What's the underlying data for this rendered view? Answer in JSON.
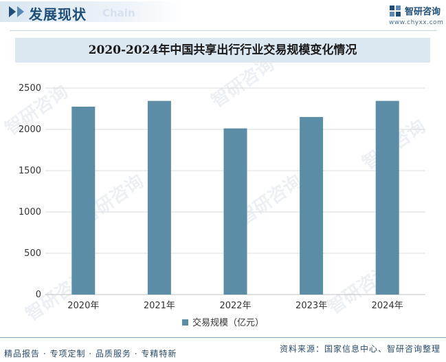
{
  "header": {
    "section_title": "发展现状",
    "section_title_en": "Chain",
    "brand_name": "智研咨询",
    "brand_url": "www.chyxx.com"
  },
  "watermark_text": "智研咨询",
  "chart_data": {
    "type": "bar",
    "title": "2020-2024年中国共享出行行业交易规模变化情况",
    "categories": [
      "2020年",
      "2021年",
      "2022年",
      "2023年",
      "2024年"
    ],
    "series": [
      {
        "name": "交易规模（亿元）",
        "values": [
          2275,
          2345,
          2012,
          2150,
          2345
        ]
      }
    ],
    "ylim": [
      0,
      2500
    ],
    "yticks": [
      "0",
      "500",
      "1000",
      "1500",
      "2000",
      "2500"
    ],
    "grid": true,
    "legend": "bottom",
    "bar_color": "#5b8ea6"
  },
  "footer": {
    "left": "精品报告 · 专项定制 · 品质服务 · 专精特新",
    "right": "资料来源：国家信息中心、智研咨询整理"
  }
}
